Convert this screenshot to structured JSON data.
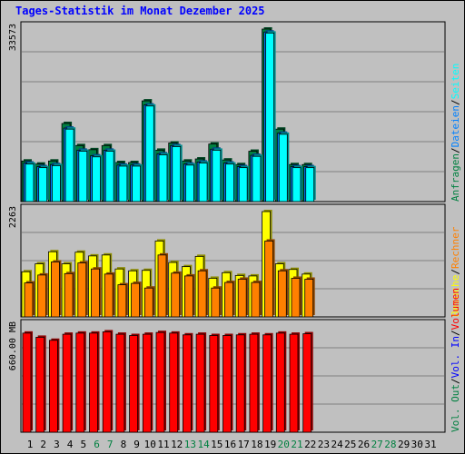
{
  "title": "Tages-Statistik im Monat Dezember 2025",
  "colors": {
    "background": "#c0c0c0",
    "title": "#0000ff",
    "hits": "#008040",
    "files": "#0080ff",
    "pages": "#00ffff",
    "visits": "#ffff00",
    "hosts": "#ff8000",
    "kbytes_in": "#0000ff",
    "kbytes_out": "#008040",
    "volume": "#ff0000",
    "weekend_label": "#008040",
    "weekday_label": "#000000"
  },
  "chart_data": [
    {
      "type": "bar",
      "panel": "top",
      "ymax_label": "33573",
      "ylim": [
        0,
        33573
      ],
      "grid": true,
      "categories": [
        "1",
        "2",
        "3",
        "4",
        "5",
        "6",
        "7",
        "8",
        "9",
        "10",
        "11",
        "12",
        "13",
        "14",
        "15",
        "16",
        "17",
        "18",
        "19",
        "20",
        "21",
        "22",
        "23",
        "24",
        "25",
        "26",
        "27",
        "28",
        "29",
        "30",
        "31"
      ],
      "legend": [
        {
          "label": "Anfragen",
          "color": "#008040"
        },
        {
          "label": "Dateien",
          "color": "#0080ff"
        },
        {
          "label": "Seiten",
          "color": "#00ffff"
        }
      ],
      "series": [
        {
          "name": "Anfragen",
          "color": "#008040",
          "values": [
            7900,
            7300,
            7900,
            15200,
            10900,
            10100,
            10900,
            7600,
            7600,
            19600,
            10000,
            11400,
            7900,
            8300,
            11200,
            8100,
            7200,
            9800,
            33573,
            14100,
            7200,
            7200,
            0,
            0,
            0,
            0,
            0,
            0,
            0,
            0,
            0
          ]
        },
        {
          "name": "Dateien",
          "color": "#0080ff",
          "values": [
            7500,
            6800,
            7200,
            14300,
            10000,
            8900,
            10000,
            7100,
            7100,
            18800,
            9300,
            10900,
            7300,
            7700,
            10200,
            7500,
            6800,
            9000,
            33000,
            13300,
            6800,
            6800,
            0,
            0,
            0,
            0,
            0,
            0,
            0,
            0,
            0
          ]
        },
        {
          "name": "Seiten",
          "color": "#00ffff",
          "values": [
            7300,
            6600,
            7000,
            14100,
            9800,
            8700,
            9800,
            6900,
            6900,
            18600,
            9100,
            10700,
            7100,
            7500,
            10000,
            7300,
            6600,
            8800,
            32800,
            13100,
            6600,
            6600,
            0,
            0,
            0,
            0,
            0,
            0,
            0,
            0,
            0
          ]
        }
      ]
    },
    {
      "type": "bar",
      "panel": "middle",
      "ymax_label": "2263",
      "ylim": [
        0,
        2263
      ],
      "grid": true,
      "legend": [
        {
          "label": "Besuche",
          "color": "#ffff00"
        },
        {
          "label": "Rechner",
          "color": "#ff8000"
        }
      ],
      "series": [
        {
          "name": "Besuche",
          "color": "#ffff00",
          "values": [
            970,
            1140,
            1400,
            1140,
            1390,
            1310,
            1330,
            1030,
            990,
            1000,
            1630,
            1170,
            1080,
            1300,
            830,
            950,
            890,
            880,
            2263,
            1140,
            1020,
            920,
            0,
            0,
            0,
            0,
            0,
            0,
            0,
            0,
            0
          ]
        },
        {
          "name": "Rechner",
          "color": "#ff8000",
          "values": [
            730,
            900,
            1180,
            930,
            1160,
            1030,
            920,
            690,
            720,
            620,
            1330,
            940,
            880,
            990,
            620,
            740,
            810,
            740,
            1630,
            990,
            830,
            810,
            0,
            0,
            0,
            0,
            0,
            0,
            0,
            0,
            0
          ]
        }
      ]
    },
    {
      "type": "bar",
      "panel": "bottom",
      "ymax_label": "660.00 MB",
      "ylim": [
        0,
        660
      ],
      "grid": true,
      "legend": [
        {
          "label": "Volumen",
          "color": "#ff0000"
        },
        {
          "label": "Vol. In",
          "color": "#0000ff"
        },
        {
          "label": "Vol. Out",
          "color": "#008040"
        }
      ],
      "series": [
        {
          "name": "Volumen",
          "color": "#ff0000",
          "values": [
            621,
            595,
            576,
            614,
            621,
            621,
            629,
            614,
            606,
            614,
            625,
            621,
            610,
            614,
            606,
            606,
            610,
            614,
            610,
            621,
            614,
            617,
            0,
            0,
            0,
            0,
            0,
            0,
            0,
            0,
            0
          ]
        }
      ]
    }
  ],
  "x_labels": [
    {
      "text": "1",
      "weekend": false
    },
    {
      "text": "2",
      "weekend": false
    },
    {
      "text": "3",
      "weekend": false
    },
    {
      "text": "4",
      "weekend": false
    },
    {
      "text": "5",
      "weekend": false
    },
    {
      "text": "6",
      "weekend": true
    },
    {
      "text": "7",
      "weekend": true
    },
    {
      "text": "8",
      "weekend": false
    },
    {
      "text": "9",
      "weekend": false
    },
    {
      "text": "10",
      "weekend": false
    },
    {
      "text": "11",
      "weekend": false
    },
    {
      "text": "12",
      "weekend": false
    },
    {
      "text": "13",
      "weekend": true
    },
    {
      "text": "14",
      "weekend": true
    },
    {
      "text": "15",
      "weekend": false
    },
    {
      "text": "16",
      "weekend": false
    },
    {
      "text": "17",
      "weekend": false
    },
    {
      "text": "18",
      "weekend": false
    },
    {
      "text": "19",
      "weekend": false
    },
    {
      "text": "20",
      "weekend": true
    },
    {
      "text": "21",
      "weekend": true
    },
    {
      "text": "22",
      "weekend": false
    },
    {
      "text": "23",
      "weekend": false
    },
    {
      "text": "24",
      "weekend": false
    },
    {
      "text": "25",
      "weekend": false
    },
    {
      "text": "26",
      "weekend": false
    },
    {
      "text": "27",
      "weekend": true
    },
    {
      "text": "28",
      "weekend": true
    },
    {
      "text": "29",
      "weekend": false
    },
    {
      "text": "30",
      "weekend": false
    },
    {
      "text": "31",
      "weekend": false
    }
  ],
  "right_legends": {
    "top": [
      {
        "text": "Anfragen",
        "color": "#008040"
      },
      {
        "sep": "/"
      },
      {
        "text": "Dateien",
        "color": "#0080ff"
      },
      {
        "sep": "/"
      },
      {
        "text": "Seiten",
        "color": "#00ffff"
      }
    ],
    "middle": [
      {
        "text": "Besuche",
        "color": "#ffff00"
      },
      {
        "sep": "/"
      },
      {
        "text": "Rechner",
        "color": "#ff8000"
      }
    ],
    "bottom": [
      {
        "text": "Vol. Out",
        "color": "#008040"
      },
      {
        "sep": "/"
      },
      {
        "text": "Vol. In",
        "color": "#0000ff"
      },
      {
        "sep": "/"
      },
      {
        "text": "Volumen",
        "color": "#ff0000"
      }
    ]
  }
}
